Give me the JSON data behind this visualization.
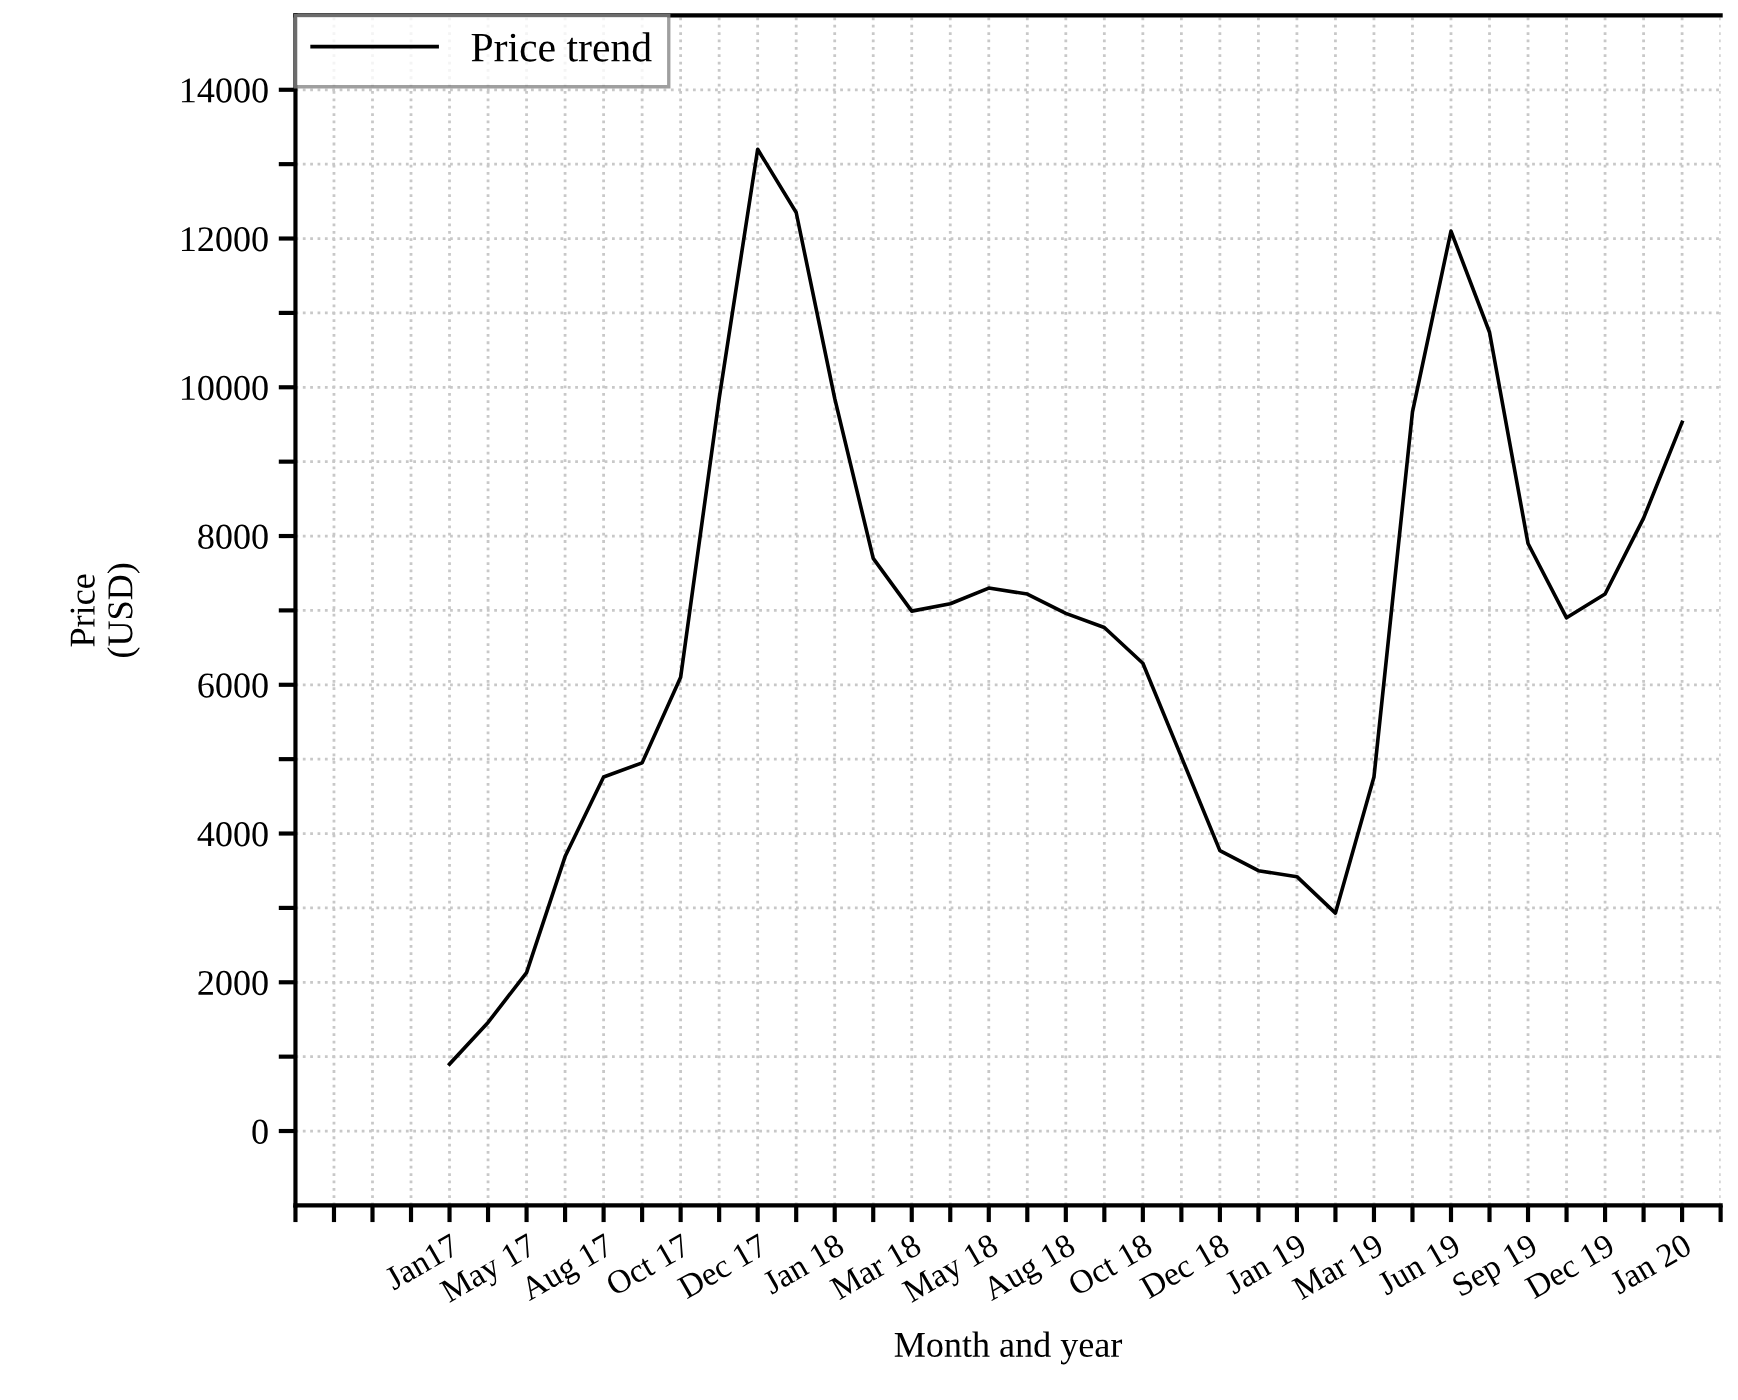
{
  "chart_data": {
    "type": "line",
    "xlabel": "Month and year",
    "ylabel": "Price\n(USD)",
    "categories": [
      "Jan17",
      null,
      "May 17",
      null,
      "Aug 17",
      null,
      "Oct 17",
      null,
      "Dec 17",
      null,
      "Jan 18",
      null,
      "Mar 18",
      null,
      "May 18",
      null,
      "Aug 18",
      null,
      "Oct 18",
      null,
      "Dec 18",
      null,
      "Jan 19",
      null,
      "Mar 19",
      null,
      "Jun 19",
      null,
      "Sep 19",
      null,
      "Dec 19",
      null,
      "Jan 20"
    ],
    "series": [
      {
        "name": "Price trend",
        "color": "#000000",
        "values": [
          900,
          1460,
          2130,
          3690,
          4760,
          4950,
          6100,
          9850,
          13200,
          12350,
          9850,
          7700,
          6990,
          7090,
          7300,
          7220,
          6960,
          6770,
          6290,
          5030,
          3770,
          3500,
          3420,
          2930,
          4760,
          9670,
          12100,
          10740,
          7900,
          6900,
          7220,
          8240,
          9530
        ]
      }
    ],
    "ylim": [
      -1000,
      15000
    ],
    "yticks": [
      0,
      {
        "value": 1000,
        "label": null
      },
      2000,
      {
        "value": 3000,
        "label": null
      },
      4000,
      {
        "value": 5000,
        "label": null
      },
      6000,
      {
        "value": 7000,
        "label": null
      },
      8000,
      {
        "value": 9000,
        "label": null
      },
      10000,
      {
        "value": 11000,
        "label": null
      },
      12000,
      {
        "value": 13000,
        "label": null
      },
      14000
    ],
    "grid": true,
    "legend": "top left",
    "marker": "none",
    "line_style": "solid"
  }
}
